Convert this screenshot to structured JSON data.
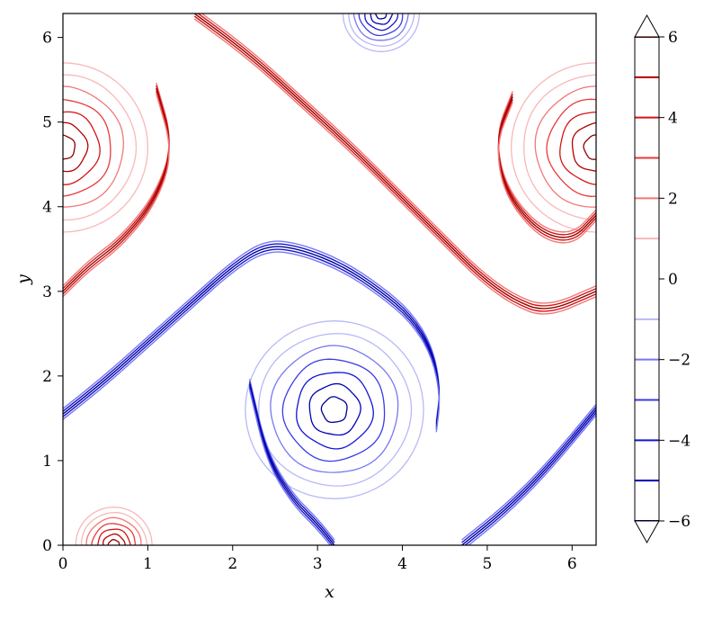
{
  "chart_data": {
    "type": "contour",
    "title": "",
    "xlabel": "x",
    "ylabel": "y",
    "xlim": [
      0,
      6.283
    ],
    "ylim": [
      0,
      6.283
    ],
    "xticks": [
      0,
      1,
      2,
      3,
      4,
      5,
      6
    ],
    "yticks": [
      0,
      1,
      2,
      3,
      4,
      5,
      6
    ],
    "xtick_labels": [
      "0",
      "1",
      "2",
      "3",
      "4",
      "5",
      "6"
    ],
    "ytick_labels": [
      "0",
      "1",
      "2",
      "3",
      "4",
      "5",
      "6"
    ],
    "grid": false,
    "legend": "none",
    "colorbar": {
      "levels": [
        -6,
        -5,
        -4,
        -3,
        -2,
        -1,
        1,
        2,
        3,
        4,
        5,
        6
      ],
      "ticks": [
        6,
        4,
        2,
        0,
        -2,
        -4,
        -6
      ],
      "tick_labels": [
        "6",
        "4",
        "2",
        "0",
        "−2",
        "−4",
        "−6"
      ],
      "extend": "both",
      "level_colors": {
        "6": "#8b0000",
        "5": "#b40000",
        "4": "#d51414",
        "3": "#e83a3a",
        "2": "#f17878",
        "1": "#f8b8b8",
        "-1": "#b8b8f8",
        "-2": "#7878f1",
        "-3": "#3a3ae8",
        "-4": "#1414d5",
        "-5": "#0000b4",
        "-6": "#00008b"
      }
    },
    "positive_color": "#e02020",
    "negative_color": "#2020e0",
    "vortices": [
      {
        "sign": "negative",
        "center": [
          3.2,
          1.6
        ],
        "radius": 1.05
      },
      {
        "sign": "positive",
        "center": [
          6.283,
          4.7
        ],
        "radius": 1.0
      },
      {
        "sign": "positive",
        "center": [
          0,
          4.7
        ],
        "radius": 1.0
      },
      {
        "sign": "positive",
        "center": [
          0.6,
          0
        ],
        "radius": 0.45
      },
      {
        "sign": "negative",
        "center": [
          3.75,
          6.283
        ],
        "radius": 0.45
      }
    ],
    "spiral_arms": [
      {
        "sign": "negative",
        "x": [
          0,
          0.5,
          1.0,
          1.5,
          2.0,
          2.4,
          2.8,
          3.3,
          3.75,
          4.1,
          4.35,
          4.45,
          4.4
        ],
        "y": [
          1.55,
          1.95,
          2.4,
          2.85,
          3.3,
          3.55,
          3.5,
          3.3,
          3.0,
          2.7,
          2.3,
          1.8,
          1.4
        ]
      },
      {
        "sign": "negative",
        "x": [
          2.2,
          2.4,
          2.7,
          3.0,
          3.2
        ],
        "y": [
          1.9,
          1.05,
          0.55,
          0.25,
          0
        ]
      },
      {
        "sign": "negative",
        "x": [
          4.7,
          5.2,
          5.7,
          6.283
        ],
        "y": [
          0,
          0.4,
          0.9,
          1.6
        ]
      },
      {
        "sign": "positive",
        "x": [
          1.55,
          2.2,
          2.8,
          3.4,
          4.0,
          4.5,
          4.9,
          5.3,
          5.7,
          6.283
        ],
        "y": [
          6.283,
          5.8,
          5.25,
          4.7,
          4.1,
          3.6,
          3.2,
          2.9,
          2.75,
          3.0
        ]
      },
      {
        "sign": "positive",
        "x": [
          0,
          0.3,
          0.7,
          1.1,
          1.3,
          1.1
        ],
        "y": [
          3.0,
          3.3,
          3.6,
          4.1,
          4.7,
          5.4
        ]
      },
      {
        "sign": "positive",
        "x": [
          6.283,
          6.0,
          5.6,
          5.2,
          5.1,
          5.3
        ],
        "y": [
          3.9,
          3.6,
          3.7,
          4.2,
          4.8,
          5.3
        ]
      }
    ]
  }
}
